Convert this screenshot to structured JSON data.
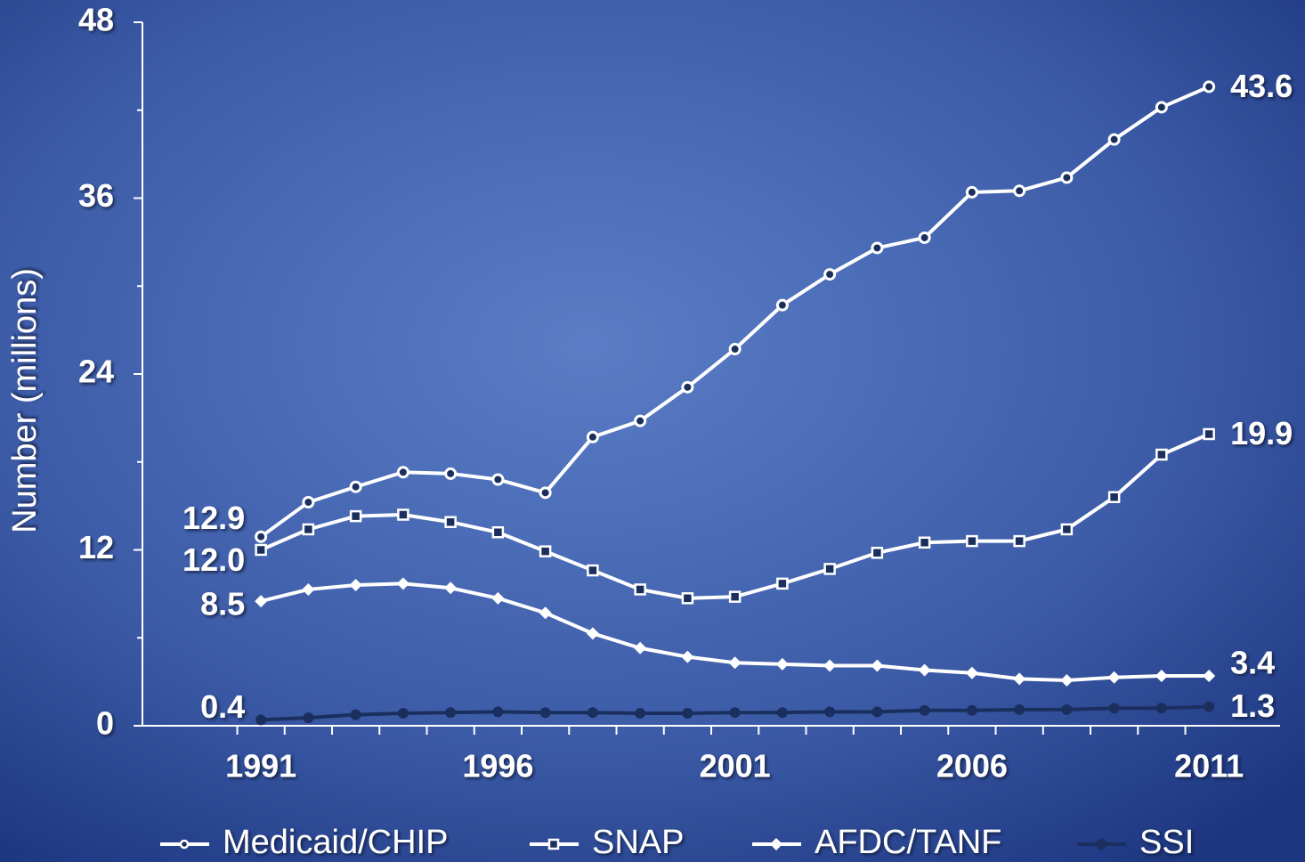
{
  "chart_data": {
    "type": "line",
    "ylabel": "Number (millions)",
    "x": [
      1991,
      1992,
      1993,
      1994,
      1995,
      1996,
      1997,
      1998,
      1999,
      2000,
      2001,
      2002,
      2003,
      2004,
      2005,
      2006,
      2007,
      2008,
      2009,
      2010,
      2011
    ],
    "xlim": [
      1988.5,
      2012.5
    ],
    "xticks": [
      1991,
      1996,
      2001,
      2006,
      2011
    ],
    "ylim": [
      0,
      48
    ],
    "yticks": [
      0,
      12,
      24,
      36,
      48
    ],
    "yminor_ticks": [
      6,
      18,
      30,
      42
    ],
    "legend": "bottom",
    "series": [
      {
        "name": "Medicaid/CHIP",
        "color": "#ffffff",
        "marker": "circle",
        "values": [
          12.9,
          15.25,
          16.3,
          17.3,
          17.2,
          16.8,
          15.9,
          19.7,
          20.8,
          23.1,
          25.7,
          28.7,
          30.8,
          32.6,
          33.3,
          36.4,
          36.5,
          37.4,
          40.0,
          42.2,
          43.6
        ],
        "value_labels": [
          "12.9",
          null,
          null,
          null,
          null,
          null,
          null,
          null,
          null,
          null,
          null,
          null,
          null,
          null,
          null,
          null,
          null,
          null,
          null,
          null,
          "43.6"
        ]
      },
      {
        "name": "SNAP",
        "color": "#ffffff",
        "marker": "square",
        "values": [
          12.0,
          13.4,
          14.3,
          14.4,
          13.9,
          13.2,
          11.9,
          10.6,
          9.3,
          8.7,
          8.8,
          9.7,
          10.7,
          11.8,
          12.5,
          12.6,
          12.6,
          13.4,
          15.6,
          18.5,
          19.9
        ],
        "value_labels": [
          "12.0",
          null,
          null,
          null,
          null,
          null,
          null,
          null,
          null,
          null,
          null,
          null,
          null,
          null,
          null,
          null,
          null,
          null,
          null,
          null,
          "19.9"
        ]
      },
      {
        "name": "AFDC/TANF",
        "color": "#ffffff",
        "marker": "diamond",
        "values": [
          8.5,
          9.3,
          9.6,
          9.7,
          9.4,
          8.7,
          7.7,
          6.3,
          5.3,
          4.7,
          4.3,
          4.2,
          4.1,
          4.1,
          3.8,
          3.6,
          3.2,
          3.1,
          3.3,
          3.4,
          3.4
        ],
        "value_labels": [
          "8.5",
          null,
          null,
          null,
          null,
          null,
          null,
          null,
          null,
          null,
          null,
          null,
          null,
          null,
          null,
          null,
          null,
          null,
          null,
          null,
          "3.4"
        ]
      },
      {
        "name": "SSI",
        "color": "#1b2f5e",
        "marker": "dot",
        "values": [
          0.4,
          0.55,
          0.75,
          0.85,
          0.9,
          0.95,
          0.9,
          0.9,
          0.85,
          0.85,
          0.9,
          0.9,
          0.95,
          0.95,
          1.05,
          1.05,
          1.1,
          1.1,
          1.2,
          1.2,
          1.3
        ],
        "value_labels": [
          "0.4",
          null,
          null,
          null,
          null,
          null,
          null,
          null,
          null,
          null,
          null,
          null,
          null,
          null,
          null,
          null,
          null,
          null,
          null,
          null,
          "1.3"
        ]
      }
    ]
  }
}
